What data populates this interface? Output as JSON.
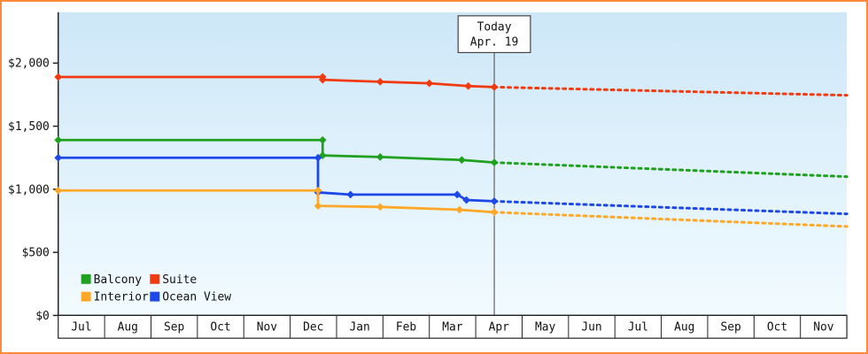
{
  "colors": {
    "frame_border": "#ff8a3c",
    "plot_bg_top": "#cde7f8",
    "plot_bg_bottom": "#f2fbff",
    "axis": "#222222",
    "text": "#111111",
    "today_line": "#444444",
    "month_strip_bg": "#ffffff",
    "today_box_bg": "#ffffff"
  },
  "chart_data": {
    "type": "line",
    "title": "",
    "xlabel": "",
    "ylabel": "",
    "x_months": [
      "Jul",
      "Aug",
      "Sep",
      "Oct",
      "Nov",
      "Dec",
      "Jan",
      "Feb",
      "Mar",
      "Apr",
      "May",
      "Jun",
      "Jul",
      "Aug",
      "Sep",
      "Oct",
      "Nov"
    ],
    "x_range": [
      0,
      17
    ],
    "ylim": [
      0,
      2400
    ],
    "yticks": [
      0,
      500,
      1000,
      1500,
      2000
    ],
    "ytick_labels": [
      "$0",
      "$500",
      "$1,000",
      "$1,500",
      "$2,000"
    ],
    "grid": false,
    "legend_position": "bottom-left-inside",
    "today": {
      "line1": "Today",
      "line2": "Apr. 19",
      "x": 9.4
    },
    "series": [
      {
        "name": "Suite",
        "color": "#f23a10",
        "solid": [
          [
            0,
            1890
          ],
          [
            5.7,
            1890
          ],
          [
            5.7,
            1868
          ],
          [
            6.94,
            1852
          ],
          [
            8.0,
            1840
          ],
          [
            8.84,
            1818
          ],
          [
            9.4,
            1810
          ]
        ],
        "dashed": [
          [
            9.4,
            1810
          ],
          [
            17,
            1745
          ]
        ],
        "markers": [
          [
            0,
            1890
          ],
          [
            5.7,
            1890
          ],
          [
            5.7,
            1868
          ],
          [
            6.94,
            1852
          ],
          [
            8.0,
            1840
          ],
          [
            8.84,
            1818
          ],
          [
            9.4,
            1810
          ]
        ]
      },
      {
        "name": "Balcony",
        "color": "#1fa11f",
        "solid": [
          [
            0,
            1390
          ],
          [
            5.7,
            1390
          ],
          [
            5.7,
            1268
          ],
          [
            6.94,
            1256
          ],
          [
            8.7,
            1232
          ],
          [
            9.4,
            1212
          ]
        ],
        "dashed": [
          [
            9.4,
            1212
          ],
          [
            17,
            1100
          ]
        ],
        "markers": [
          [
            0,
            1390
          ],
          [
            5.7,
            1390
          ],
          [
            5.7,
            1268
          ],
          [
            6.94,
            1256
          ],
          [
            8.7,
            1232
          ],
          [
            9.4,
            1212
          ]
        ]
      },
      {
        "name": "Ocean View",
        "color": "#1c48e8",
        "solid": [
          [
            0,
            1250
          ],
          [
            5.6,
            1250
          ],
          [
            5.6,
            975
          ],
          [
            6.3,
            958
          ],
          [
            8.6,
            958
          ],
          [
            8.8,
            915
          ],
          [
            9.4,
            905
          ]
        ],
        "dashed": [
          [
            9.4,
            905
          ],
          [
            17,
            805
          ]
        ],
        "markers": [
          [
            0,
            1250
          ],
          [
            5.6,
            1250
          ],
          [
            5.6,
            975
          ],
          [
            6.3,
            958
          ],
          [
            8.6,
            958
          ],
          [
            8.8,
            915
          ],
          [
            9.4,
            905
          ]
        ]
      },
      {
        "name": "Interior",
        "color": "#ffa726",
        "solid": [
          [
            0,
            990
          ],
          [
            5.6,
            990
          ],
          [
            5.6,
            868
          ],
          [
            6.94,
            860
          ],
          [
            8.65,
            838
          ],
          [
            9.4,
            818
          ]
        ],
        "dashed": [
          [
            9.4,
            818
          ],
          [
            17,
            705
          ]
        ],
        "markers": [
          [
            0,
            990
          ],
          [
            5.6,
            990
          ],
          [
            5.6,
            868
          ],
          [
            6.94,
            860
          ],
          [
            8.65,
            838
          ],
          [
            9.4,
            818
          ]
        ]
      }
    ],
    "legend": {
      "columns": 2,
      "items": [
        {
          "label": "Balcony",
          "color": "#1fa11f"
        },
        {
          "label": "Suite",
          "color": "#f23a10"
        },
        {
          "label": "Interior",
          "color": "#ffa726"
        },
        {
          "label": "Ocean View",
          "color": "#1c48e8"
        }
      ]
    }
  }
}
